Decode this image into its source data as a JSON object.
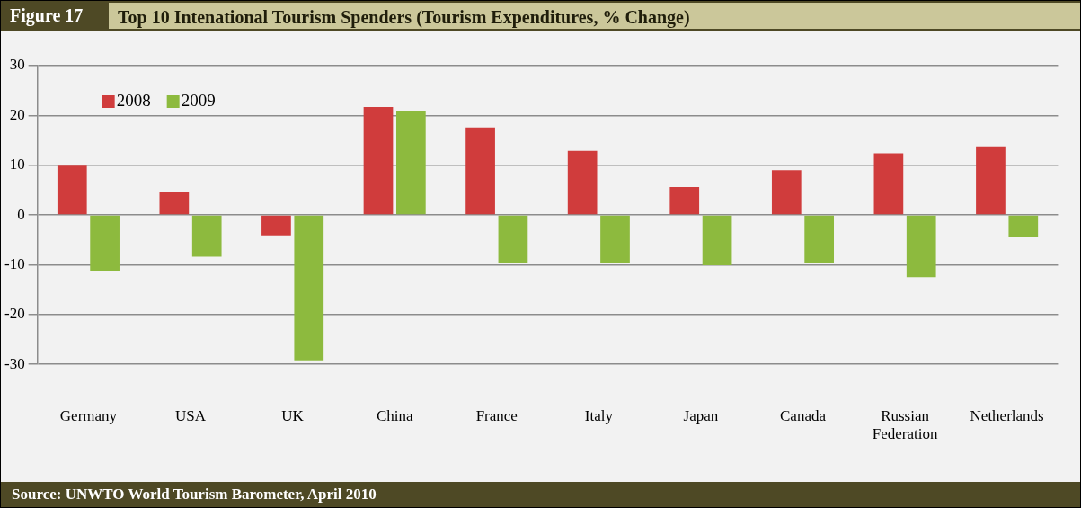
{
  "chart_data": {
    "type": "bar",
    "title": "Top 10 Intenational Tourism Spenders (Tourism Expenditures, % Change)",
    "categories": [
      "Germany",
      "USA",
      "UK",
      "China",
      "France",
      "Italy",
      "Japan",
      "Canada",
      "Russian Federation",
      "Netherlands"
    ],
    "series": [
      {
        "name": "2008",
        "color": "#d03c3c",
        "values": [
          9.9,
          4.6,
          -4.1,
          21.7,
          17.6,
          12.9,
          5.6,
          9.0,
          12.4,
          13.8
        ]
      },
      {
        "name": "2009",
        "color": "#8dba3e",
        "values": [
          -11.2,
          -8.4,
          -29.2,
          20.9,
          -9.6,
          -9.6,
          -10.1,
          -9.6,
          -12.5,
          -4.5
        ]
      }
    ],
    "ylim": [
      -30,
      30
    ],
    "yticks": [
      -30,
      -20,
      -10,
      0,
      10,
      20,
      30
    ],
    "grid": "y",
    "legend": "top left",
    "annotations": [
      "Figure 17",
      "Source: UNWTO World Tourism Barometer, April 2010"
    ]
  }
}
